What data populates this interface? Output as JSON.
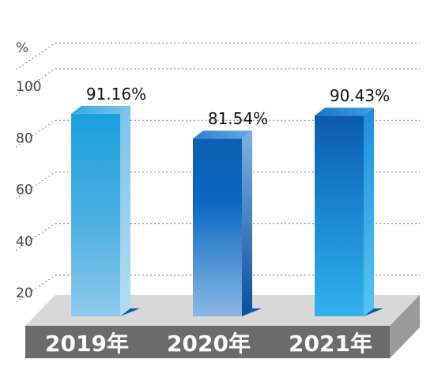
{
  "chart_data": {
    "type": "bar",
    "categories": [
      "2019年",
      "2020年",
      "2021年"
    ],
    "values": [
      91.16,
      81.54,
      90.43
    ],
    "value_labels": [
      "91.16%",
      "81.54%",
      "90.43%"
    ],
    "y_unit_label": "%",
    "y_ticks": [
      "20",
      "40",
      "60",
      "80",
      "100"
    ],
    "ylim": [
      20,
      110
    ],
    "grid": true,
    "style": "3d-bar",
    "colors": {
      "bar_light": "#8ac6ec",
      "bar_mid": "#2aa2de",
      "bar_dark": "#0a5aad",
      "base_top": "#d8d8d8",
      "base_front": "#6b6b6b",
      "grid": "#7a7a7a"
    }
  }
}
